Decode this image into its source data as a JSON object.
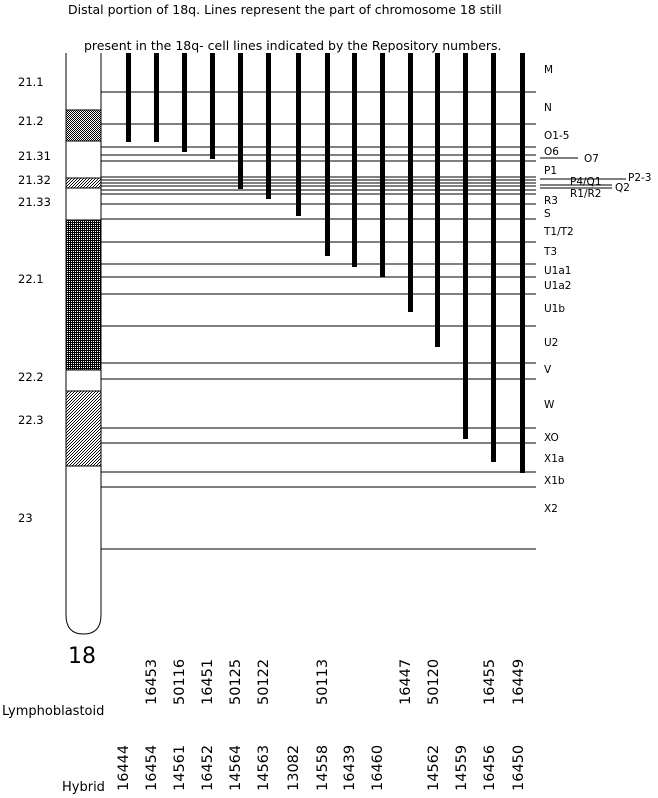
{
  "title": {
    "line1": "Distal portion of 18q.  Lines represent the part of chromosome 18 still",
    "line2": "present in the 18q- cell lines indicated by the Repository numbers."
  },
  "chromosome": {
    "name": "18",
    "band_labels": [
      "21.1",
      "21.2",
      "21.31",
      "21.32",
      "21.33",
      "22.1",
      "22.2",
      "22.3",
      "23"
    ]
  },
  "region_labels": [
    "M",
    "N",
    "O1-5",
    "O6",
    "O7",
    "P1",
    "P2-3",
    "P4/Q1",
    "Q2",
    "R1/R2",
    "R3",
    "S",
    "T1/T2",
    "T3",
    "U1a1",
    "U1a2",
    "U1b",
    "U2",
    "V",
    "W",
    "XO",
    "X1a",
    "X1b",
    "X2"
  ],
  "rows": {
    "lymphoblastoid_label": "Lymphoblastoid",
    "hybrid_label": "Hybrid"
  },
  "lymphoblastoid_numbers": [
    "16453",
    "50116",
    "16451",
    "50125",
    "50122",
    "50113",
    "16447",
    "50120",
    "16455",
    "16449"
  ],
  "hybrid_numbers": [
    "16444",
    "16454",
    "14561",
    "16452",
    "14564",
    "14563",
    "13082",
    "14558",
    "16439",
    "16460",
    "14562",
    "14559",
    "16456",
    "16450"
  ]
}
